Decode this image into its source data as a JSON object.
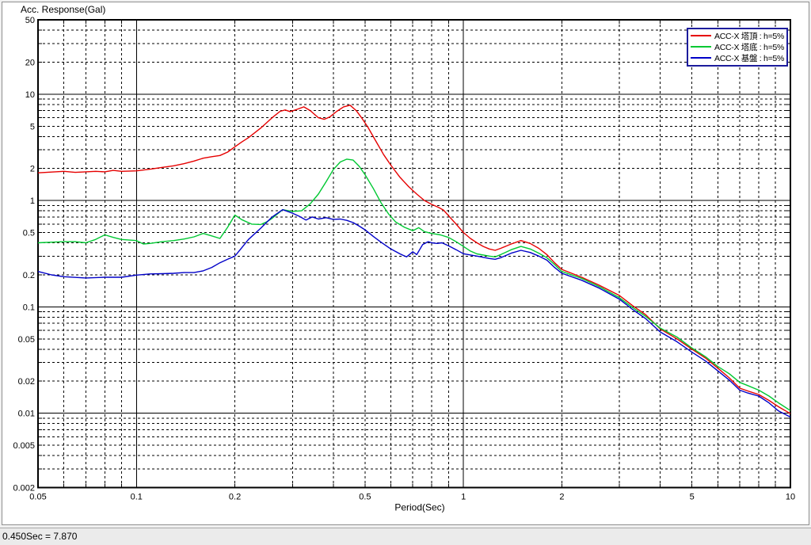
{
  "status_bar": {
    "text": "0.450Sec = 7.870"
  },
  "chart_data": {
    "type": "line",
    "title": "Acc. Response(Gal)",
    "xlabel": "Period(Sec)",
    "ylabel": "Acc. Response(Gal)",
    "x_scale": "log",
    "y_scale": "log",
    "xlim": [
      0.05,
      10
    ],
    "ylim": [
      0.002,
      50
    ],
    "x_ticks": [
      "0.05",
      "0.1",
      "0.2",
      "0.5",
      "1",
      "2",
      "5",
      "10"
    ],
    "y_ticks": [
      "50",
      "20",
      "10",
      "5",
      "2",
      "1",
      "0.5",
      "0.2",
      "0.1",
      "0.05",
      "0.02",
      "0.01",
      "0.005",
      "0.002"
    ],
    "grid": "solid lines at powers of 10, dashed minor log gridlines",
    "legend_position": "top-right",
    "legend_border_color": "#1c1c9c",
    "series": [
      {
        "name": "ACC-X 塔頂 : h=5%",
        "color": "#e60000",
        "points": [
          [
            0.05,
            1.82
          ],
          [
            0.055,
            1.85
          ],
          [
            0.06,
            1.88
          ],
          [
            0.065,
            1.84
          ],
          [
            0.07,
            1.86
          ],
          [
            0.075,
            1.88
          ],
          [
            0.08,
            1.86
          ],
          [
            0.085,
            1.92
          ],
          [
            0.09,
            1.88
          ],
          [
            0.1,
            1.9
          ],
          [
            0.11,
            1.97
          ],
          [
            0.12,
            2.05
          ],
          [
            0.13,
            2.12
          ],
          [
            0.14,
            2.22
          ],
          [
            0.15,
            2.35
          ],
          [
            0.16,
            2.5
          ],
          [
            0.17,
            2.58
          ],
          [
            0.18,
            2.65
          ],
          [
            0.19,
            2.85
          ],
          [
            0.2,
            3.2
          ],
          [
            0.21,
            3.55
          ],
          [
            0.22,
            3.9
          ],
          [
            0.24,
            4.8
          ],
          [
            0.26,
            6.0
          ],
          [
            0.275,
            6.9
          ],
          [
            0.285,
            7.1
          ],
          [
            0.295,
            6.85
          ],
          [
            0.31,
            7.2
          ],
          [
            0.325,
            7.6
          ],
          [
            0.34,
            7.0
          ],
          [
            0.36,
            6.0
          ],
          [
            0.375,
            5.8
          ],
          [
            0.39,
            6.1
          ],
          [
            0.41,
            6.9
          ],
          [
            0.43,
            7.6
          ],
          [
            0.45,
            7.87
          ],
          [
            0.47,
            7.0
          ],
          [
            0.49,
            5.9
          ],
          [
            0.51,
            4.9
          ],
          [
            0.54,
            3.6
          ],
          [
            0.57,
            2.7
          ],
          [
            0.6,
            2.15
          ],
          [
            0.64,
            1.65
          ],
          [
            0.68,
            1.35
          ],
          [
            0.72,
            1.15
          ],
          [
            0.76,
            1.0
          ],
          [
            0.8,
            0.92
          ],
          [
            0.84,
            0.86
          ],
          [
            0.87,
            0.81
          ],
          [
            0.9,
            0.72
          ],
          [
            0.95,
            0.6
          ],
          [
            1.0,
            0.5
          ],
          [
            1.05,
            0.44
          ],
          [
            1.1,
            0.4
          ],
          [
            1.15,
            0.37
          ],
          [
            1.2,
            0.35
          ],
          [
            1.25,
            0.34
          ],
          [
            1.3,
            0.355
          ],
          [
            1.4,
            0.39
          ],
          [
            1.5,
            0.42
          ],
          [
            1.6,
            0.395
          ],
          [
            1.7,
            0.355
          ],
          [
            1.8,
            0.31
          ],
          [
            1.9,
            0.26
          ],
          [
            2.0,
            0.225
          ],
          [
            2.3,
            0.19
          ],
          [
            2.6,
            0.16
          ],
          [
            3.0,
            0.128
          ],
          [
            3.3,
            0.102
          ],
          [
            3.6,
            0.085
          ],
          [
            4.0,
            0.062
          ],
          [
            4.5,
            0.05
          ],
          [
            5.0,
            0.04
          ],
          [
            5.5,
            0.033
          ],
          [
            6.0,
            0.0265
          ],
          [
            6.5,
            0.0215
          ],
          [
            7.0,
            0.0172
          ],
          [
            7.4,
            0.0162
          ],
          [
            8.0,
            0.015
          ],
          [
            8.6,
            0.0132
          ],
          [
            9.2,
            0.0115
          ],
          [
            10,
            0.0099
          ]
        ]
      },
      {
        "name": "ACC-X 塔底 : h=5%",
        "color": "#00c832",
        "points": [
          [
            0.05,
            0.4
          ],
          [
            0.06,
            0.41
          ],
          [
            0.065,
            0.41
          ],
          [
            0.07,
            0.4
          ],
          [
            0.075,
            0.43
          ],
          [
            0.08,
            0.475
          ],
          [
            0.085,
            0.45
          ],
          [
            0.09,
            0.43
          ],
          [
            0.1,
            0.42
          ],
          [
            0.105,
            0.39
          ],
          [
            0.11,
            0.395
          ],
          [
            0.12,
            0.41
          ],
          [
            0.13,
            0.42
          ],
          [
            0.14,
            0.435
          ],
          [
            0.15,
            0.455
          ],
          [
            0.16,
            0.49
          ],
          [
            0.17,
            0.465
          ],
          [
            0.18,
            0.44
          ],
          [
            0.19,
            0.56
          ],
          [
            0.2,
            0.73
          ],
          [
            0.21,
            0.66
          ],
          [
            0.225,
            0.6
          ],
          [
            0.24,
            0.595
          ],
          [
            0.25,
            0.63
          ],
          [
            0.26,
            0.68
          ],
          [
            0.28,
            0.82
          ],
          [
            0.3,
            0.79
          ],
          [
            0.32,
            0.8
          ],
          [
            0.34,
            0.93
          ],
          [
            0.36,
            1.15
          ],
          [
            0.38,
            1.5
          ],
          [
            0.4,
            1.95
          ],
          [
            0.42,
            2.3
          ],
          [
            0.44,
            2.45
          ],
          [
            0.46,
            2.4
          ],
          [
            0.48,
            2.1
          ],
          [
            0.5,
            1.75
          ],
          [
            0.53,
            1.3
          ],
          [
            0.56,
            0.95
          ],
          [
            0.59,
            0.75
          ],
          [
            0.62,
            0.63
          ],
          [
            0.66,
            0.56
          ],
          [
            0.7,
            0.52
          ],
          [
            0.73,
            0.555
          ],
          [
            0.76,
            0.51
          ],
          [
            0.8,
            0.49
          ],
          [
            0.85,
            0.475
          ],
          [
            0.9,
            0.45
          ],
          [
            0.95,
            0.41
          ],
          [
            1.0,
            0.37
          ],
          [
            1.05,
            0.335
          ],
          [
            1.1,
            0.315
          ],
          [
            1.2,
            0.3
          ],
          [
            1.25,
            0.295
          ],
          [
            1.3,
            0.31
          ],
          [
            1.4,
            0.345
          ],
          [
            1.5,
            0.37
          ],
          [
            1.6,
            0.35
          ],
          [
            1.7,
            0.32
          ],
          [
            1.8,
            0.29
          ],
          [
            1.9,
            0.25
          ],
          [
            2.0,
            0.215
          ],
          [
            2.3,
            0.185
          ],
          [
            2.6,
            0.155
          ],
          [
            3.0,
            0.122
          ],
          [
            3.3,
            0.098
          ],
          [
            3.6,
            0.082
          ],
          [
            4.0,
            0.063
          ],
          [
            4.5,
            0.052
          ],
          [
            5.0,
            0.041
          ],
          [
            5.5,
            0.034
          ],
          [
            6.0,
            0.0275
          ],
          [
            6.5,
            0.0235
          ],
          [
            7.0,
            0.0195
          ],
          [
            7.4,
            0.0182
          ],
          [
            8.0,
            0.0165
          ],
          [
            8.6,
            0.0145
          ],
          [
            9.2,
            0.0125
          ],
          [
            10,
            0.0106
          ]
        ]
      },
      {
        "name": "ACC-X 基盤 : h=5%",
        "color": "#0000c8",
        "points": [
          [
            0.05,
            0.215
          ],
          [
            0.055,
            0.2
          ],
          [
            0.06,
            0.192
          ],
          [
            0.07,
            0.187
          ],
          [
            0.08,
            0.19
          ],
          [
            0.09,
            0.19
          ],
          [
            0.1,
            0.199
          ],
          [
            0.11,
            0.204
          ],
          [
            0.12,
            0.205
          ],
          [
            0.13,
            0.207
          ],
          [
            0.14,
            0.21
          ],
          [
            0.15,
            0.21
          ],
          [
            0.16,
            0.218
          ],
          [
            0.17,
            0.235
          ],
          [
            0.18,
            0.26
          ],
          [
            0.19,
            0.28
          ],
          [
            0.2,
            0.3
          ],
          [
            0.21,
            0.36
          ],
          [
            0.22,
            0.43
          ],
          [
            0.24,
            0.55
          ],
          [
            0.26,
            0.7
          ],
          [
            0.28,
            0.82
          ],
          [
            0.3,
            0.76
          ],
          [
            0.315,
            0.71
          ],
          [
            0.33,
            0.655
          ],
          [
            0.345,
            0.7
          ],
          [
            0.36,
            0.67
          ],
          [
            0.38,
            0.69
          ],
          [
            0.4,
            0.665
          ],
          [
            0.42,
            0.67
          ],
          [
            0.44,
            0.65
          ],
          [
            0.46,
            0.62
          ],
          [
            0.48,
            0.575
          ],
          [
            0.5,
            0.53
          ],
          [
            0.53,
            0.46
          ],
          [
            0.56,
            0.405
          ],
          [
            0.6,
            0.35
          ],
          [
            0.64,
            0.315
          ],
          [
            0.67,
            0.295
          ],
          [
            0.7,
            0.33
          ],
          [
            0.72,
            0.31
          ],
          [
            0.75,
            0.385
          ],
          [
            0.78,
            0.41
          ],
          [
            0.8,
            0.4
          ],
          [
            0.83,
            0.395
          ],
          [
            0.86,
            0.4
          ],
          [
            0.9,
            0.375
          ],
          [
            0.95,
            0.345
          ],
          [
            1.0,
            0.316
          ],
          [
            1.1,
            0.3
          ],
          [
            1.2,
            0.285
          ],
          [
            1.25,
            0.28
          ],
          [
            1.3,
            0.29
          ],
          [
            1.4,
            0.32
          ],
          [
            1.5,
            0.34
          ],
          [
            1.6,
            0.325
          ],
          [
            1.7,
            0.3
          ],
          [
            1.8,
            0.275
          ],
          [
            1.9,
            0.235
          ],
          [
            2.0,
            0.207
          ],
          [
            2.3,
            0.178
          ],
          [
            2.6,
            0.15
          ],
          [
            3.0,
            0.118
          ],
          [
            3.3,
            0.094
          ],
          [
            3.6,
            0.078
          ],
          [
            4.0,
            0.058
          ],
          [
            4.5,
            0.047
          ],
          [
            5.0,
            0.0375
          ],
          [
            5.5,
            0.031
          ],
          [
            6.0,
            0.025
          ],
          [
            6.5,
            0.0205
          ],
          [
            7.0,
            0.0165
          ],
          [
            7.4,
            0.0155
          ],
          [
            8.0,
            0.0145
          ],
          [
            8.6,
            0.0125
          ],
          [
            9.2,
            0.0105
          ],
          [
            10,
            0.0092
          ]
        ]
      }
    ]
  }
}
